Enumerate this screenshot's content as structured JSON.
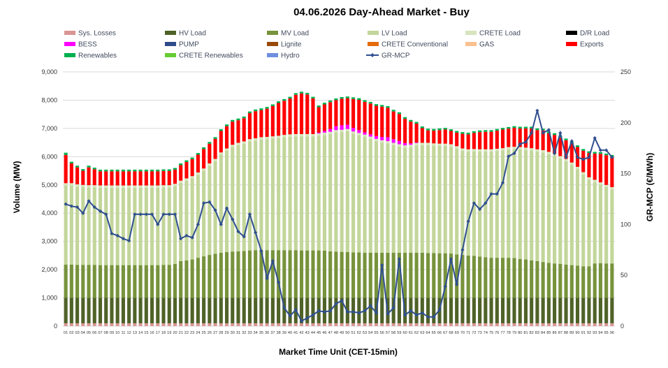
{
  "chart_data": {
    "type": "bar",
    "title": "04.06.2026  Day-Ahead Market - Buy",
    "xlabel": "Market Time Unit (CET-15min)",
    "ylabel": "Volume (MW)",
    "y2label": "GR-MCP (€/MWh)",
    "ylim": [
      0,
      9000
    ],
    "y2lim": [
      0,
      250
    ],
    "y_ticks": [
      "0",
      "1,000",
      "2,000",
      "3,000",
      "4,000",
      "5,000",
      "6,000",
      "7,000",
      "8,000",
      "9,000"
    ],
    "y2_ticks": [
      "0",
      "50",
      "100",
      "150",
      "200",
      "250"
    ],
    "grid": true,
    "stacked": true,
    "legend_position": "top",
    "categories": [
      "01",
      "02",
      "03",
      "04",
      "05",
      "06",
      "07",
      "08",
      "09",
      "10",
      "11",
      "12",
      "13",
      "14",
      "15",
      "16",
      "17",
      "18",
      "19",
      "20",
      "21",
      "22",
      "23",
      "24",
      "25",
      "26",
      "27",
      "28",
      "29",
      "30",
      "31",
      "32",
      "33",
      "34",
      "35",
      "36",
      "37",
      "38",
      "39",
      "40",
      "41",
      "42",
      "43",
      "44",
      "45",
      "46",
      "47",
      "48",
      "49",
      "50",
      "51",
      "52",
      "53",
      "54",
      "55",
      "56",
      "57",
      "58",
      "59",
      "60",
      "61",
      "62",
      "63",
      "64",
      "65",
      "66",
      "67",
      "68",
      "69",
      "70",
      "71",
      "72",
      "73",
      "74",
      "75",
      "76",
      "77",
      "78",
      "79",
      "80",
      "81",
      "82",
      "83",
      "84",
      "85",
      "86",
      "87",
      "88",
      "89",
      "90",
      "91",
      "92",
      "93",
      "94",
      "95",
      "96"
    ],
    "legend": [
      {
        "name": "Sys. Losses",
        "color": "#d99694"
      },
      {
        "name": "HV Load",
        "color": "#4f6228"
      },
      {
        "name": "MV Load",
        "color": "#77933c"
      },
      {
        "name": "LV Load",
        "color": "#c3d69b"
      },
      {
        "name": "CRETE Load",
        "color": "#d7e4bd"
      },
      {
        "name": "D/R Load",
        "color": "#000000"
      },
      {
        "name": "BESS",
        "color": "#ff00ff"
      },
      {
        "name": "PUMP",
        "color": "#2e4a8b"
      },
      {
        "name": "Lignite",
        "color": "#984807"
      },
      {
        "name": "CRETE Conventional",
        "color": "#e46c0a"
      },
      {
        "name": "GAS",
        "color": "#fac090"
      },
      {
        "name": "Exports",
        "color": "#ff0000"
      },
      {
        "name": "Renewables",
        "color": "#00b050"
      },
      {
        "name": "CRETE Renewables",
        "color": "#66cc33"
      },
      {
        "name": "Hydro",
        "color": "#6f8fdf"
      },
      {
        "name": "GR-MCP",
        "color": "#2f4f8f"
      }
    ],
    "series": [
      {
        "name": "Sys. Losses",
        "values": [
          100,
          100,
          100,
          100,
          100,
          100,
          100,
          100,
          100,
          100,
          100,
          100,
          100,
          100,
          100,
          100,
          100,
          100,
          100,
          100,
          100,
          100,
          100,
          100,
          100,
          100,
          100,
          100,
          100,
          100,
          100,
          100,
          100,
          100,
          100,
          100,
          100,
          100,
          100,
          100,
          100,
          100,
          100,
          100,
          100,
          100,
          100,
          100,
          100,
          100,
          100,
          100,
          100,
          100,
          100,
          100,
          100,
          100,
          100,
          100,
          100,
          100,
          100,
          100,
          100,
          100,
          100,
          100,
          100,
          100,
          100,
          100,
          100,
          100,
          100,
          100,
          100,
          100,
          100,
          100,
          100,
          100,
          100,
          100,
          100,
          100,
          100,
          100,
          100,
          100,
          100,
          100,
          100,
          100,
          100,
          100
        ]
      },
      {
        "name": "HV Load",
        "values": [
          900,
          900,
          900,
          900,
          900,
          900,
          900,
          900,
          900,
          900,
          900,
          900,
          900,
          900,
          900,
          900,
          900,
          900,
          900,
          900,
          900,
          900,
          900,
          900,
          900,
          900,
          900,
          900,
          900,
          900,
          900,
          900,
          900,
          900,
          900,
          900,
          900,
          900,
          900,
          900,
          900,
          900,
          900,
          900,
          900,
          900,
          900,
          900,
          900,
          900,
          900,
          900,
          900,
          900,
          900,
          900,
          900,
          900,
          900,
          900,
          900,
          900,
          900,
          900,
          900,
          900,
          900,
          900,
          900,
          900,
          900,
          900,
          900,
          900,
          900,
          900,
          900,
          900,
          900,
          900,
          900,
          900,
          900,
          900,
          900,
          900,
          900,
          900,
          900,
          900,
          900,
          900,
          900,
          900,
          900,
          900
        ]
      },
      {
        "name": "MV Load",
        "values": [
          1180,
          1180,
          1170,
          1170,
          1170,
          1170,
          1160,
          1160,
          1160,
          1160,
          1160,
          1160,
          1160,
          1160,
          1160,
          1160,
          1160,
          1170,
          1170,
          1200,
          1300,
          1330,
          1360,
          1420,
          1470,
          1520,
          1560,
          1600,
          1620,
          1640,
          1650,
          1660,
          1680,
          1690,
          1690,
          1690,
          1690,
          1690,
          1690,
          1690,
          1690,
          1680,
          1680,
          1680,
          1680,
          1670,
          1650,
          1640,
          1630,
          1620,
          1610,
          1610,
          1600,
          1600,
          1600,
          1600,
          1600,
          1600,
          1600,
          1600,
          1600,
          1600,
          1600,
          1590,
          1590,
          1580,
          1580,
          1570,
          1540,
          1520,
          1500,
          1490,
          1460,
          1440,
          1420,
          1420,
          1420,
          1420,
          1410,
          1380,
          1360,
          1330,
          1300,
          1270,
          1240,
          1220,
          1200,
          1180,
          1160,
          1140,
          1120,
          1120,
          1220,
          1230,
          1220,
          1220
        ]
      },
      {
        "name": "LV Load",
        "values": [
          2800,
          2800,
          2770,
          2750,
          2740,
          2740,
          2740,
          2740,
          2740,
          2740,
          2740,
          2740,
          2740,
          2740,
          2740,
          2740,
          2740,
          2740,
          2740,
          2760,
          2770,
          2820,
          2870,
          2940,
          3030,
          3160,
          3280,
          3470,
          3590,
          3700,
          3760,
          3800,
          3860,
          3880,
          3920,
          3930,
          3950,
          3970,
          4000,
          4020,
          4030,
          4040,
          4040,
          4040,
          4060,
          4100,
          4150,
          4220,
          4240,
          4280,
          4200,
          4150,
          4100,
          4030,
          3950,
          3900,
          3870,
          3810,
          3760,
          3720,
          3740,
          3800,
          3810,
          3820,
          3800,
          3800,
          3800,
          3790,
          3750,
          3690,
          3680,
          3700,
          3720,
          3740,
          3760,
          3780,
          3800,
          3840,
          3860,
          3880,
          3880,
          3890,
          3880,
          3880,
          3850,
          3800,
          3740,
          3660,
          3550,
          3420,
          3250,
          3070,
          2880,
          2780,
          2700,
          2620
        ]
      },
      {
        "name": "CRETE Load",
        "values": [
          80,
          80,
          80,
          80,
          80,
          80,
          80,
          80,
          80,
          80,
          80,
          80,
          80,
          80,
          80,
          80,
          80,
          80,
          80,
          80,
          80,
          80,
          80,
          80,
          80,
          80,
          80,
          80,
          80,
          80,
          80,
          80,
          80,
          80,
          80,
          80,
          80,
          80,
          80,
          80,
          80,
          80,
          80,
          80,
          80,
          80,
          80,
          80,
          80,
          80,
          80,
          80,
          80,
          80,
          80,
          80,
          80,
          80,
          80,
          80,
          80,
          80,
          80,
          80,
          80,
          80,
          80,
          80,
          80,
          80,
          80,
          80,
          80,
          80,
          80,
          80,
          80,
          80,
          80,
          80,
          80,
          80,
          80,
          80,
          80,
          80,
          80,
          80,
          80,
          80,
          80,
          80,
          80,
          80,
          80,
          80
        ]
      },
      {
        "name": "BESS",
        "values": [
          0,
          0,
          0,
          0,
          0,
          0,
          0,
          0,
          0,
          0,
          0,
          0,
          0,
          0,
          0,
          0,
          0,
          0,
          0,
          0,
          0,
          0,
          0,
          0,
          0,
          0,
          0,
          0,
          0,
          0,
          0,
          0,
          0,
          0,
          0,
          0,
          0,
          0,
          0,
          0,
          0,
          0,
          0,
          0,
          30,
          60,
          100,
          140,
          160,
          150,
          130,
          100,
          80,
          80,
          100,
          120,
          140,
          130,
          120,
          80,
          50,
          20,
          0,
          0,
          0,
          0,
          0,
          0,
          0,
          0,
          0,
          0,
          0,
          0,
          0,
          0,
          0,
          0,
          0,
          0,
          0,
          0,
          0,
          0,
          0,
          0,
          0,
          0,
          0,
          0,
          0,
          0,
          0,
          0,
          0,
          0
        ]
      },
      {
        "name": "Exports",
        "values": [
          1000,
          700,
          600,
          500,
          630,
          560,
          500,
          500,
          500,
          500,
          500,
          500,
          500,
          500,
          500,
          500,
          500,
          500,
          500,
          500,
          550,
          580,
          600,
          630,
          690,
          700,
          710,
          760,
          790,
          820,
          800,
          820,
          920,
          960,
          960,
          1000,
          1070,
          1160,
          1210,
          1270,
          1390,
          1440,
          1400,
          1260,
          900,
          940,
          950,
          920,
          940,
          940,
          1020,
          1070,
          1080,
          1090,
          1070,
          1070,
          1040,
          980,
          950,
          860,
          770,
          670,
          520,
          440,
          450,
          480,
          500,
          470,
          480,
          520,
          530,
          570,
          610,
          620,
          620,
          640,
          660,
          650,
          670,
          660,
          680,
          700,
          680,
          700,
          660,
          670,
          660,
          660,
          680,
          700,
          760,
          860,
          930,
          1010,
          1050,
          1080
        ]
      },
      {
        "name": "Renewables",
        "values": [
          80,
          60,
          60,
          60,
          60,
          60,
          60,
          60,
          60,
          60,
          60,
          60,
          60,
          60,
          60,
          60,
          60,
          60,
          60,
          60,
          60,
          60,
          60,
          60,
          60,
          60,
          60,
          60,
          60,
          60,
          60,
          60,
          60,
          60,
          60,
          60,
          60,
          60,
          60,
          60,
          60,
          60,
          60,
          60,
          60,
          60,
          60,
          60,
          60,
          60,
          60,
          60,
          60,
          60,
          60,
          60,
          60,
          60,
          60,
          60,
          60,
          60,
          60,
          60,
          60,
          60,
          60,
          60,
          60,
          60,
          60,
          60,
          60,
          60,
          60,
          60,
          60,
          60,
          60,
          60,
          60,
          60,
          60,
          60,
          60,
          60,
          60,
          60,
          60,
          60,
          60,
          60,
          60,
          60,
          60,
          60
        ]
      },
      {
        "name": "GR-MCP",
        "axis": "y2",
        "values": [
          120,
          118,
          117,
          111,
          123,
          117,
          113,
          110,
          91,
          89,
          86,
          84,
          110,
          110,
          110,
          110,
          100,
          110,
          110,
          110,
          86,
          89,
          87,
          100,
          121,
          122,
          114,
          100,
          116,
          105,
          93,
          88,
          110,
          92,
          74,
          47,
          64,
          43,
          18,
          10,
          16,
          5,
          8,
          11,
          15,
          14,
          15,
          22,
          25,
          14,
          14,
          13,
          15,
          20,
          13,
          60,
          12,
          18,
          66,
          11,
          15,
          11,
          13,
          9,
          9,
          16,
          39,
          66,
          41,
          75,
          103,
          121,
          115,
          121,
          130,
          130,
          141,
          167,
          170,
          179,
          181,
          190,
          212,
          190,
          193,
          170,
          190,
          166,
          182,
          166,
          164,
          166,
          185,
          173,
          173,
          166
        ]
      }
    ]
  }
}
